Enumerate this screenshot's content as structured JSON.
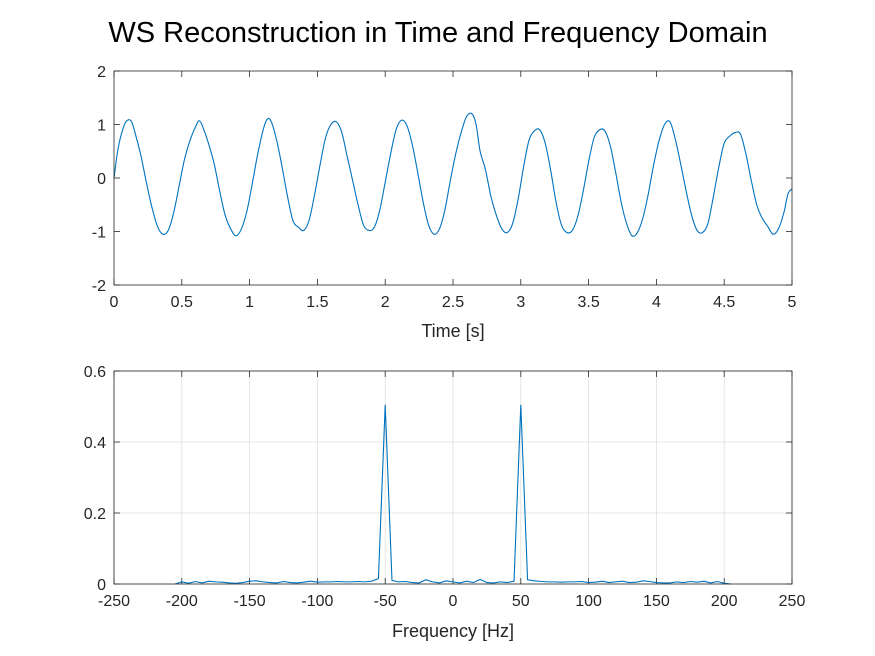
{
  "figure": {
    "title": "WS Reconstruction in Time and Frequency Domain"
  },
  "chart_data": [
    {
      "type": "line",
      "title": "",
      "xlabel": "Time [s]",
      "ylabel": "",
      "xlim": [
        0,
        5
      ],
      "ylim": [
        -2,
        2
      ],
      "xticks": [
        0,
        0.5,
        1,
        1.5,
        2,
        2.5,
        3,
        3.5,
        4,
        4.5,
        5
      ],
      "xtick_labels": [
        "0",
        "0.5",
        "1",
        "1.5",
        "2",
        "2.5",
        "3",
        "3.5",
        "4",
        "4.5",
        "5"
      ],
      "yticks": [
        -2,
        -1,
        0,
        1,
        2
      ],
      "ytick_labels": [
        "-2",
        "-1",
        "0",
        "1",
        "2"
      ],
      "grid": false,
      "line_color": "#0072BD",
      "series": [
        {
          "x": [
            0,
            0.03,
            0.07,
            0.1,
            0.13,
            0.16,
            0.2,
            0.24,
            0.28,
            0.32,
            0.36,
            0.4,
            0.44,
            0.48,
            0.52,
            0.56,
            0.6,
            0.63,
            0.66,
            0.7,
            0.74,
            0.78,
            0.82,
            0.86,
            0.9,
            0.94,
            0.98,
            1.02,
            1.06,
            1.1,
            1.13,
            1.16,
            1.2,
            1.24,
            1.28,
            1.32,
            1.36,
            1.4,
            1.44,
            1.48,
            1.52,
            1.56,
            1.6,
            1.64,
            1.68,
            1.72,
            1.76,
            1.8,
            1.84,
            1.88,
            1.92,
            1.96,
            2.0,
            2.04,
            2.08,
            2.12,
            2.16,
            2.2,
            2.24,
            2.28,
            2.32,
            2.36,
            2.4,
            2.44,
            2.48,
            2.52,
            2.56,
            2.6,
            2.64,
            2.67,
            2.7,
            2.74,
            2.78,
            2.82,
            2.86,
            2.9,
            2.94,
            2.98,
            3.02,
            3.06,
            3.1,
            3.14,
            3.18,
            3.22,
            3.26,
            3.3,
            3.34,
            3.38,
            3.42,
            3.46,
            3.5,
            3.54,
            3.58,
            3.62,
            3.66,
            3.7,
            3.74,
            3.78,
            3.82,
            3.86,
            3.9,
            3.94,
            3.98,
            4.02,
            4.06,
            4.1,
            4.14,
            4.18,
            4.22,
            4.26,
            4.3,
            4.34,
            4.38,
            4.42,
            4.46,
            4.5,
            4.54,
            4.58,
            4.62,
            4.66,
            4.7,
            4.74,
            4.78,
            4.82,
            4.86,
            4.9,
            4.94,
            4.97,
            5.0
          ],
          "y": [
            0.0,
            0.55,
            0.95,
            1.08,
            1.05,
            0.8,
            0.4,
            -0.1,
            -0.55,
            -0.9,
            -1.05,
            -0.98,
            -0.65,
            -0.15,
            0.35,
            0.7,
            0.95,
            1.07,
            0.92,
            0.62,
            0.25,
            -0.25,
            -0.7,
            -0.95,
            -1.08,
            -0.95,
            -0.62,
            -0.1,
            0.45,
            0.9,
            1.1,
            1.05,
            0.7,
            0.2,
            -0.35,
            -0.8,
            -0.92,
            -0.98,
            -0.78,
            -0.3,
            0.25,
            0.75,
            1.0,
            1.05,
            0.85,
            0.4,
            -0.05,
            -0.5,
            -0.88,
            -0.98,
            -0.92,
            -0.6,
            -0.08,
            0.45,
            0.9,
            1.08,
            0.98,
            0.62,
            0.1,
            -0.45,
            -0.88,
            -1.05,
            -0.95,
            -0.6,
            -0.05,
            0.45,
            0.85,
            1.15,
            1.2,
            1.0,
            0.5,
            0.15,
            -0.35,
            -0.7,
            -0.95,
            -1.02,
            -0.85,
            -0.4,
            0.2,
            0.7,
            0.88,
            0.9,
            0.65,
            0.15,
            -0.45,
            -0.88,
            -1.02,
            -0.98,
            -0.72,
            -0.25,
            0.3,
            0.75,
            0.9,
            0.88,
            0.6,
            0.1,
            -0.45,
            -0.85,
            -1.08,
            -1.02,
            -0.75,
            -0.3,
            0.25,
            0.7,
            1.0,
            1.05,
            0.72,
            0.25,
            -0.25,
            -0.7,
            -0.98,
            -1.02,
            -0.85,
            -0.35,
            0.2,
            0.65,
            0.78,
            0.85,
            0.82,
            0.45,
            -0.05,
            -0.5,
            -0.75,
            -0.9,
            -1.05,
            -0.95,
            -0.65,
            -0.3,
            -0.2
          ]
        }
      ]
    },
    {
      "type": "line",
      "title": "",
      "xlabel": "Frequency [Hz]",
      "ylabel": "",
      "xlim": [
        -250,
        250
      ],
      "ylim": [
        0,
        0.6
      ],
      "xticks": [
        -250,
        -200,
        -150,
        -100,
        -50,
        0,
        50,
        100,
        150,
        200,
        250
      ],
      "xtick_labels": [
        "-250",
        "-200",
        "-150",
        "-100",
        "-50",
        "0",
        "50",
        "100",
        "150",
        "200",
        "250"
      ],
      "yticks": [
        0,
        0.2,
        0.4,
        0.6
      ],
      "ytick_labels": [
        "0",
        "0.2",
        "0.4",
        "0.6"
      ],
      "grid": true,
      "line_color": "#0072BD",
      "series": [
        {
          "x": [
            -205,
            -200,
            -195,
            -190,
            -185,
            -180,
            -175,
            -170,
            -165,
            -160,
            -155,
            -150,
            -145,
            -140,
            -135,
            -130,
            -125,
            -120,
            -115,
            -110,
            -105,
            -100,
            -95,
            -90,
            -85,
            -80,
            -75,
            -70,
            -65,
            -60,
            -55,
            -50,
            -45,
            -40,
            -35,
            -30,
            -25,
            -20,
            -15,
            -10,
            -5,
            0,
            5,
            10,
            15,
            20,
            25,
            30,
            35,
            40,
            45,
            50,
            55,
            60,
            65,
            70,
            75,
            80,
            85,
            90,
            95,
            100,
            105,
            110,
            115,
            120,
            125,
            130,
            135,
            140,
            145,
            150,
            155,
            160,
            165,
            170,
            175,
            180,
            185,
            190,
            195,
            200,
            205
          ],
          "y": [
            0.0,
            0.006,
            0.002,
            0.007,
            0.003,
            0.008,
            0.006,
            0.005,
            0.003,
            0.002,
            0.004,
            0.008,
            0.009,
            0.006,
            0.004,
            0.003,
            0.007,
            0.004,
            0.003,
            0.005,
            0.008,
            0.005,
            0.006,
            0.006,
            0.007,
            0.006,
            0.006,
            0.007,
            0.006,
            0.008,
            0.015,
            0.505,
            0.01,
            0.006,
            0.007,
            0.004,
            0.003,
            0.012,
            0.006,
            0.003,
            0.009,
            0.006,
            0.003,
            0.008,
            0.004,
            0.013,
            0.004,
            0.003,
            0.006,
            0.004,
            0.008,
            0.505,
            0.012,
            0.009,
            0.007,
            0.006,
            0.006,
            0.005,
            0.006,
            0.006,
            0.007,
            0.004,
            0.005,
            0.008,
            0.004,
            0.006,
            0.008,
            0.004,
            0.005,
            0.009,
            0.007,
            0.004,
            0.003,
            0.003,
            0.006,
            0.004,
            0.007,
            0.005,
            0.008,
            0.003,
            0.007,
            0.002,
            0.0
          ]
        }
      ]
    }
  ]
}
